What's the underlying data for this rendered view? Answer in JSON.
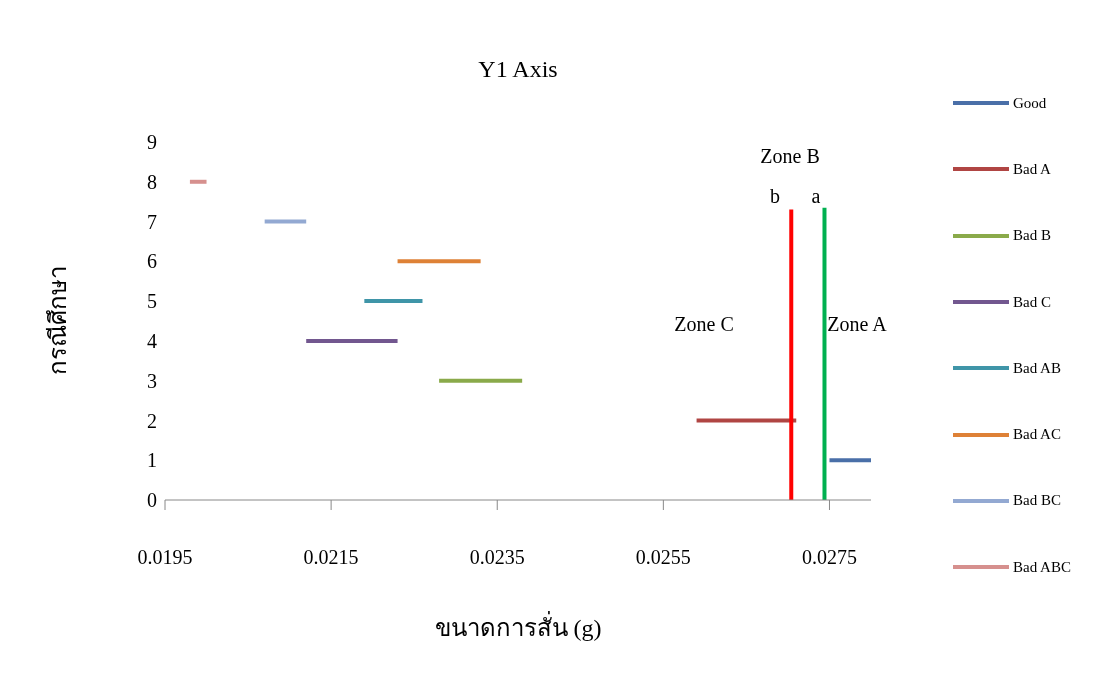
{
  "chart_data": {
    "type": "line",
    "title": "Y1 Axis",
    "xlabel": "ขนาดการสั่น (g)",
    "ylabel": "กรณีศึกษา",
    "xlim": [
      0.0195,
      0.028
    ],
    "xticks": [
      0.0195,
      0.0215,
      0.0235,
      0.0255,
      0.0275
    ],
    "ylim": [
      0,
      9
    ],
    "yticks": [
      0,
      1,
      2,
      3,
      4,
      5,
      6,
      7,
      8,
      9
    ],
    "grid": false,
    "legend": "right",
    "marker": "none",
    "line_style": "solid",
    "series": [
      {
        "name": "Good",
        "color": "#4a6fa8",
        "x": [
          0.0275,
          0.028
        ],
        "values": [
          1,
          1
        ]
      },
      {
        "name": "Bad A",
        "color": "#b04543",
        "x": [
          0.0259,
          0.0271
        ],
        "values": [
          2,
          2
        ]
      },
      {
        "name": "Bad B",
        "color": "#8aaa4a",
        "x": [
          0.0228,
          0.0238
        ],
        "values": [
          3,
          3
        ]
      },
      {
        "name": "Bad C",
        "color": "#72578f",
        "x": [
          0.0212,
          0.0223
        ],
        "values": [
          4,
          4
        ]
      },
      {
        "name": "Bad AB",
        "color": "#3f95a8",
        "x": [
          0.0219,
          0.0226
        ],
        "values": [
          5,
          5
        ]
      },
      {
        "name": "Bad AC",
        "color": "#de8136",
        "x": [
          0.0223,
          0.0233
        ],
        "values": [
          6,
          6
        ]
      },
      {
        "name": "Bad BC",
        "color": "#93a9d2",
        "x": [
          0.0207,
          0.0212
        ],
        "values": [
          7,
          7
        ]
      },
      {
        "name": "Bad ABC",
        "color": "#d6908e",
        "x": [
          0.0198,
          0.02
        ],
        "values": [
          8,
          8
        ]
      },
      {
        "color": "#ff0000",
        "x": [
          0.02704,
          0.02704
        ],
        "values": [
          0,
          7.3
        ]
      },
      {
        "color": "#00b050",
        "x": [
          0.02744,
          0.02744
        ],
        "values": [
          0,
          7.35
        ]
      }
    ],
    "annotations": [
      "Zone B",
      "b",
      "a",
      "Zone C",
      "Zone A"
    ]
  }
}
